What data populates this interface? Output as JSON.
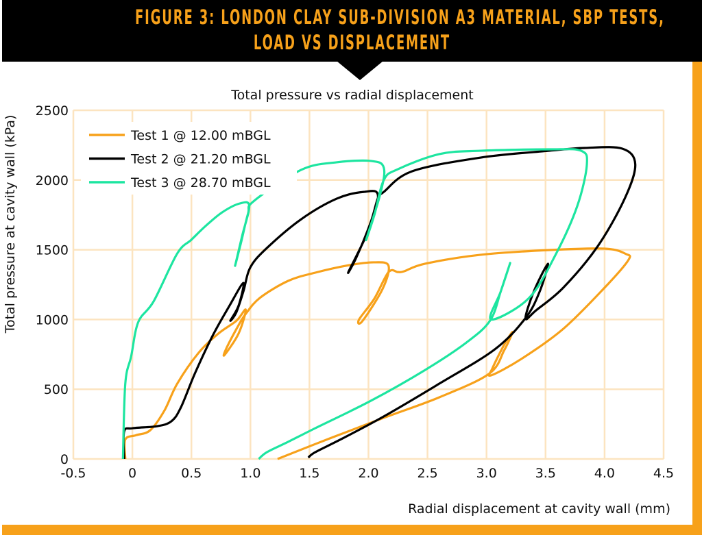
{
  "header": {
    "title_line1": "FIGURE 3: LONDON CLAY SUB-DIVISION A3 MATERIAL, SBP TESTS,",
    "title_line2": "LOAD VS DISPLACEMENT"
  },
  "colors": {
    "accent": "#F7A11A",
    "banner": "#000000",
    "grid": "#FCE4C0"
  },
  "chart_data": {
    "type": "line",
    "title": "Total pressure vs radial displacement",
    "xlabel": "Radial displacement at cavity wall (mm)",
    "ylabel": "Total pressure at cavity wall (kPa)",
    "xlim": [
      -0.5,
      4.5
    ],
    "ylim": [
      0,
      2500
    ],
    "xticks": [
      "-0.5",
      "0",
      "0.5",
      "1.0",
      "1.5",
      "2.0",
      "2.5",
      "3.0",
      "3.5",
      "4.0",
      "4.5"
    ],
    "yticks": [
      "0",
      "500",
      "1000",
      "1500",
      "2000",
      "2500"
    ],
    "grid": true,
    "legend_position": "top-left",
    "series": [
      {
        "name": "Test 1 @ 12.00 mBGL",
        "color": "#F7A11A",
        "points": [
          [
            -0.06,
            0
          ],
          [
            -0.06,
            140
          ],
          [
            0.03,
            170
          ],
          [
            0.15,
            205
          ],
          [
            0.27,
            345
          ],
          [
            0.38,
            540
          ],
          [
            0.56,
            760
          ],
          [
            0.73,
            900
          ],
          [
            0.88,
            990
          ],
          [
            0.96,
            1070
          ],
          [
            0.9,
            900
          ],
          [
            0.78,
            745
          ],
          [
            0.8,
            800
          ],
          [
            0.9,
            960
          ],
          [
            0.96,
            1040
          ],
          [
            1.08,
            1155
          ],
          [
            1.32,
            1277
          ],
          [
            1.55,
            1336
          ],
          [
            1.84,
            1390
          ],
          [
            2.05,
            1410
          ],
          [
            2.17,
            1385
          ],
          [
            2.12,
            1220
          ],
          [
            1.95,
            990
          ],
          [
            1.92,
            1000
          ],
          [
            2.05,
            1150
          ],
          [
            2.17,
            1340
          ],
          [
            2.25,
            1340
          ],
          [
            2.3,
            1345
          ],
          [
            2.48,
            1400
          ],
          [
            2.95,
            1464
          ],
          [
            3.53,
            1498
          ],
          [
            4.0,
            1508
          ],
          [
            4.18,
            1470
          ],
          [
            4.2,
            1424
          ],
          [
            4.0,
            1228
          ],
          [
            3.65,
            933
          ],
          [
            3.3,
            720
          ],
          [
            3.04,
            600
          ],
          [
            3.05,
            650
          ],
          [
            3.15,
            820
          ],
          [
            3.22,
            910
          ],
          [
            3.15,
            780
          ],
          [
            3.02,
            610
          ],
          [
            2.6,
            442
          ],
          [
            2.13,
            295
          ],
          [
            1.67,
            147
          ],
          [
            1.23,
            0
          ]
        ]
      },
      {
        "name": "Test 2 @ 21.20 mBGL",
        "color": "#000000",
        "points": [
          [
            -0.07,
            0
          ],
          [
            -0.07,
            196
          ],
          [
            0.0,
            220
          ],
          [
            0.21,
            235
          ],
          [
            0.33,
            270
          ],
          [
            0.41,
            368
          ],
          [
            0.53,
            614
          ],
          [
            0.68,
            884
          ],
          [
            0.82,
            1095
          ],
          [
            0.94,
            1262
          ],
          [
            0.9,
            1100
          ],
          [
            0.83,
            992
          ],
          [
            0.88,
            1050
          ],
          [
            0.94,
            1200
          ],
          [
            1.0,
            1375
          ],
          [
            1.14,
            1513
          ],
          [
            1.43,
            1719
          ],
          [
            1.73,
            1866
          ],
          [
            1.96,
            1915
          ],
          [
            2.08,
            1891
          ],
          [
            2.0,
            1640
          ],
          [
            1.83,
            1341
          ],
          [
            1.9,
            1450
          ],
          [
            2.02,
            1700
          ],
          [
            2.08,
            1870
          ],
          [
            2.13,
            1915
          ],
          [
            2.37,
            2063
          ],
          [
            2.95,
            2161
          ],
          [
            3.53,
            2210
          ],
          [
            3.83,
            2230
          ],
          [
            4.15,
            2225
          ],
          [
            4.26,
            2112
          ],
          [
            4.17,
            1866
          ],
          [
            3.94,
            1523
          ],
          [
            3.65,
            1228
          ],
          [
            3.42,
            1066
          ],
          [
            3.33,
            1007
          ],
          [
            3.4,
            1200
          ],
          [
            3.52,
            1400
          ],
          [
            3.45,
            1200
          ],
          [
            3.33,
            1010
          ],
          [
            3.07,
            786
          ],
          [
            2.6,
            540
          ],
          [
            2.13,
            305
          ],
          [
            1.78,
            147
          ],
          [
            1.55,
            49
          ],
          [
            1.49,
            10
          ]
        ]
      },
      {
        "name": "Test 3 @ 28.70 mBGL",
        "color": "#1DE5A0",
        "points": [
          [
            -0.08,
            0
          ],
          [
            -0.06,
            540
          ],
          [
            -0.01,
            737
          ],
          [
            0.05,
            982
          ],
          [
            0.18,
            1130
          ],
          [
            0.38,
            1473
          ],
          [
            0.5,
            1572
          ],
          [
            0.62,
            1670
          ],
          [
            0.76,
            1768
          ],
          [
            0.91,
            1832
          ],
          [
            0.99,
            1815
          ],
          [
            0.93,
            1600
          ],
          [
            0.87,
            1385
          ],
          [
            0.92,
            1550
          ],
          [
            0.98,
            1760
          ],
          [
            1.03,
            1850
          ],
          [
            1.43,
            2073
          ],
          [
            1.73,
            2127
          ],
          [
            2.02,
            2137
          ],
          [
            2.13,
            2088
          ],
          [
            2.1,
            1900
          ],
          [
            1.98,
            1572
          ],
          [
            2.05,
            1750
          ],
          [
            2.13,
            2000
          ],
          [
            2.25,
            2078
          ],
          [
            2.6,
            2186
          ],
          [
            2.95,
            2210
          ],
          [
            3.53,
            2220
          ],
          [
            3.8,
            2210
          ],
          [
            3.85,
            2112
          ],
          [
            3.77,
            1817
          ],
          [
            3.59,
            1473
          ],
          [
            3.36,
            1154
          ],
          [
            3.04,
            1000
          ],
          [
            3.12,
            1200
          ],
          [
            3.2,
            1405
          ],
          [
            3.12,
            1200
          ],
          [
            3.03,
            992
          ],
          [
            2.83,
            835
          ],
          [
            2.48,
            638
          ],
          [
            2.02,
            417
          ],
          [
            1.55,
            221
          ],
          [
            1.32,
            123
          ],
          [
            1.14,
            49
          ],
          [
            1.07,
            0
          ]
        ]
      }
    ]
  }
}
